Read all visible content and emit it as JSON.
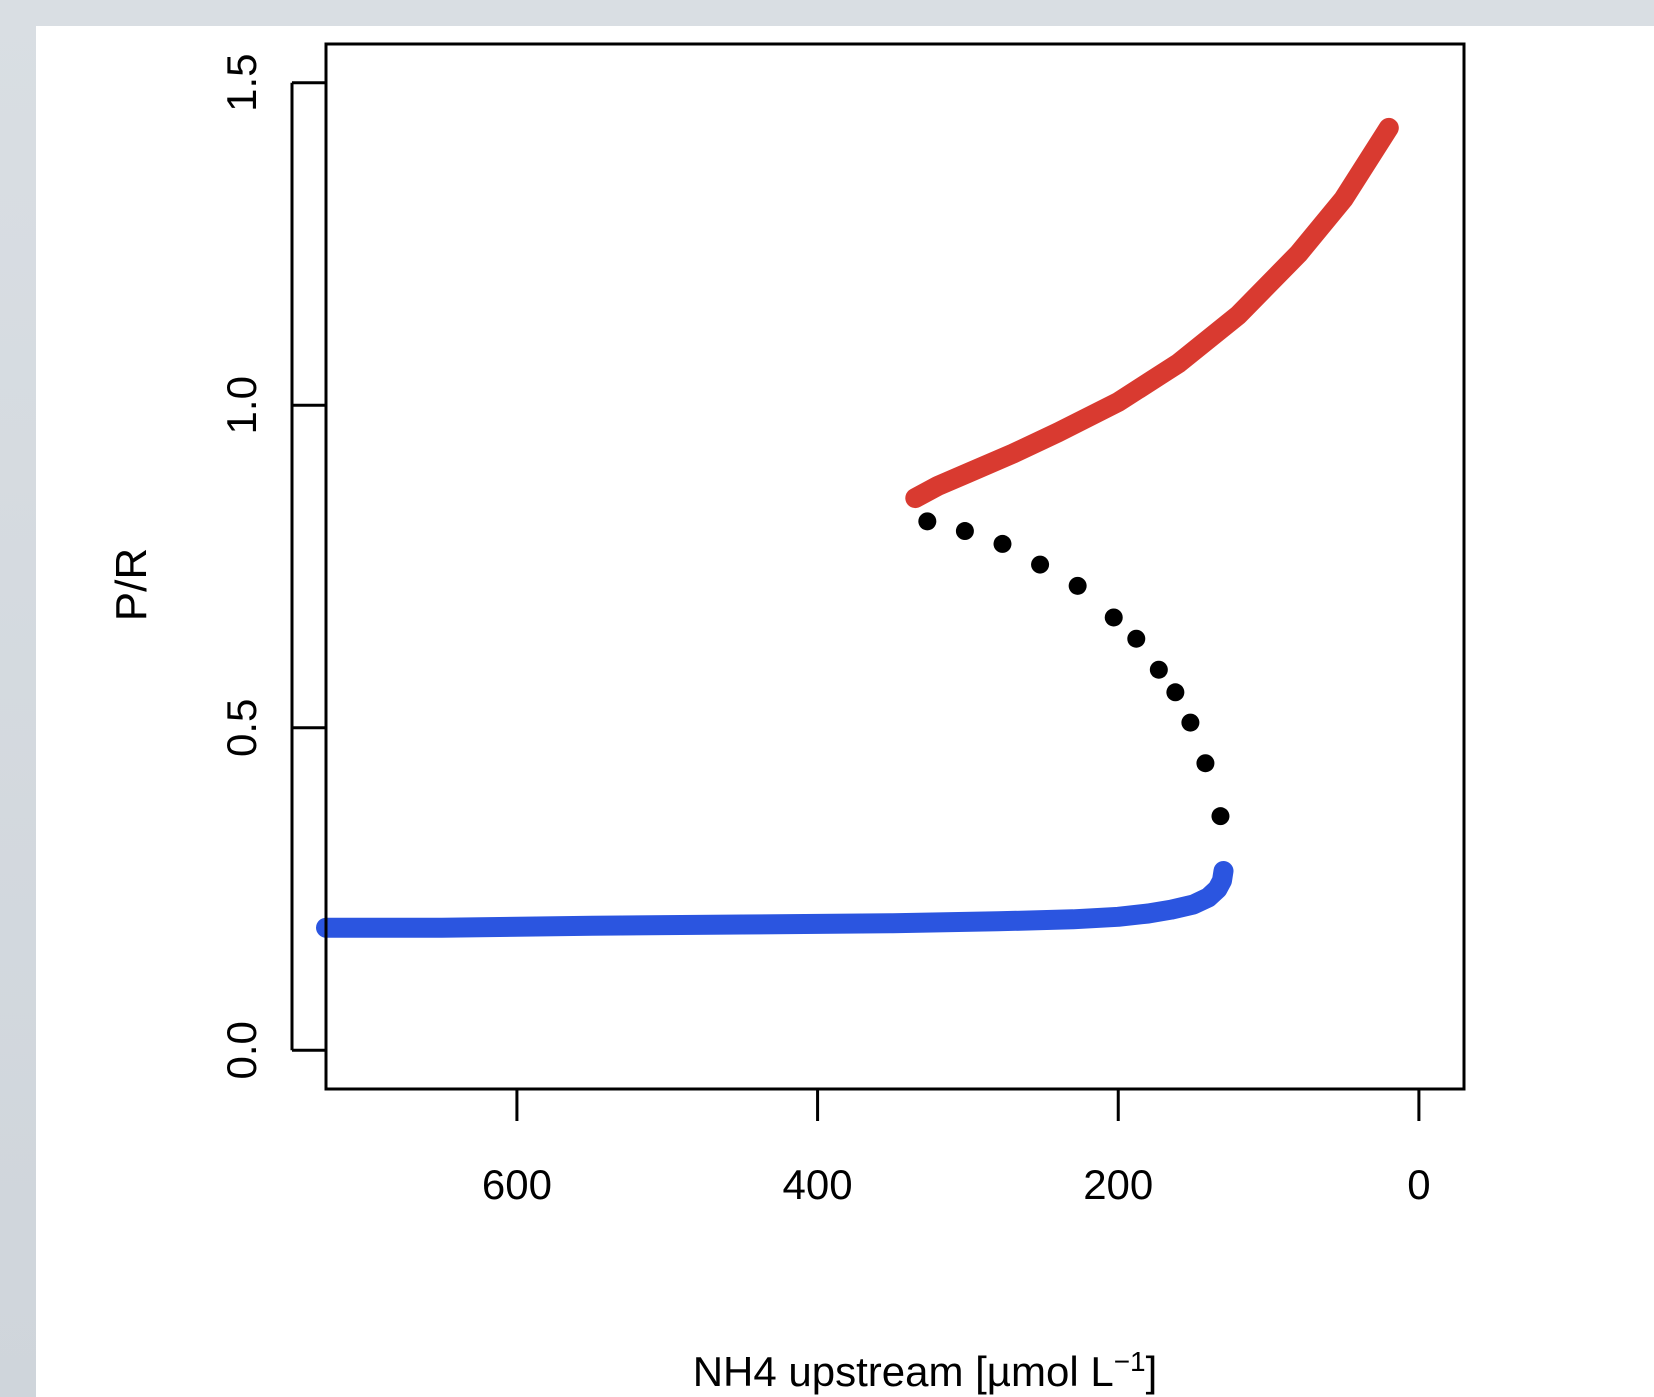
{
  "chart_data": {
    "type": "line",
    "xlabel": "NH4 upstream [µmol L",
    "xlabel_superscript": "−1",
    "xlabel_suffix": "]",
    "ylabel": "P/R",
    "xlim": [
      727,
      -30
    ],
    "ylim": [
      -0.06,
      1.56
    ],
    "x_reversed": true,
    "x_ticks": [
      600,
      400,
      200,
      0
    ],
    "x_tick_labels": [
      "600",
      "400",
      "200",
      "0"
    ],
    "y_ticks": [
      0.0,
      0.5,
      1.0,
      1.5
    ],
    "y_tick_labels": [
      "0.0",
      "0.5",
      "1.0",
      "1.5"
    ],
    "grid": false,
    "legend": "none",
    "series": [
      {
        "style": "solid",
        "color": "#2b55e0",
        "x": [
          727,
          650,
          550,
          450,
          350,
          280,
          230,
          200,
          180,
          165,
          150,
          140,
          134,
          131,
          130
        ],
        "y": [
          0.19,
          0.19,
          0.193,
          0.195,
          0.197,
          0.2,
          0.203,
          0.207,
          0.212,
          0.218,
          0.226,
          0.237,
          0.25,
          0.263,
          0.278
        ]
      },
      {
        "style": "dots",
        "color": "#000000",
        "x": [
          327,
          302,
          277,
          252,
          227,
          203,
          188,
          173,
          162,
          152,
          142,
          132
        ],
        "y": [
          0.82,
          0.805,
          0.785,
          0.753,
          0.72,
          0.671,
          0.638,
          0.59,
          0.555,
          0.508,
          0.445,
          0.363
        ]
      },
      {
        "style": "solid",
        "color": "#d93a30",
        "x": [
          335,
          320,
          300,
          270,
          240,
          200,
          160,
          120,
          80,
          50,
          20
        ],
        "y": [
          0.856,
          0.875,
          0.895,
          0.925,
          0.958,
          1.005,
          1.065,
          1.14,
          1.235,
          1.32,
          1.43
        ]
      }
    ]
  }
}
